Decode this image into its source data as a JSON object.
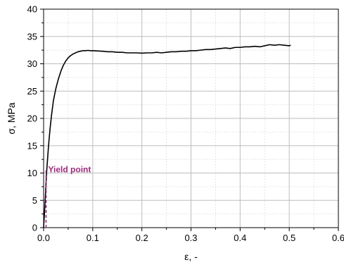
{
  "chart_data": {
    "type": "line",
    "xlabel": "ε, -",
    "ylabel": "σ, MPa",
    "xlim": [
      0,
      0.6
    ],
    "ylim": [
      0,
      40
    ],
    "xticks": [
      "0.0",
      "0.1",
      "0.2",
      "0.3",
      "0.4",
      "0.5",
      "0.6"
    ],
    "yticks": [
      "0",
      "5",
      "10",
      "15",
      "20",
      "25",
      "30",
      "35",
      "40"
    ],
    "grid": true,
    "minor_grid": true,
    "series": [
      {
        "color": "#000000",
        "x": [
          0.0,
          0.002,
          0.004,
          0.006,
          0.008,
          0.01,
          0.013,
          0.016,
          0.02,
          0.025,
          0.03,
          0.035,
          0.04,
          0.045,
          0.05,
          0.055,
          0.06,
          0.065,
          0.07,
          0.075,
          0.08,
          0.085,
          0.09,
          0.095,
          0.1,
          0.11,
          0.12,
          0.13,
          0.14,
          0.15,
          0.16,
          0.17,
          0.18,
          0.19,
          0.2,
          0.21,
          0.22,
          0.23,
          0.24,
          0.25,
          0.26,
          0.27,
          0.28,
          0.29,
          0.3,
          0.31,
          0.32,
          0.33,
          0.34,
          0.35,
          0.36,
          0.37,
          0.38,
          0.39,
          0.4,
          0.41,
          0.42,
          0.43,
          0.44,
          0.45,
          0.46,
          0.47,
          0.48,
          0.49,
          0.5,
          0.503
        ],
        "y": [
          0.0,
          3.0,
          6.5,
          10.0,
          12.5,
          15.0,
          18.0,
          20.5,
          23.3,
          25.5,
          27.2,
          28.6,
          29.7,
          30.5,
          31.1,
          31.5,
          31.8,
          32.0,
          32.2,
          32.3,
          32.4,
          32.4,
          32.45,
          32.4,
          32.4,
          32.35,
          32.3,
          32.2,
          32.2,
          32.1,
          32.1,
          32.0,
          32.0,
          32.0,
          31.95,
          32.0,
          32.0,
          32.1,
          32.0,
          32.1,
          32.2,
          32.2,
          32.3,
          32.3,
          32.4,
          32.4,
          32.5,
          32.6,
          32.6,
          32.7,
          32.8,
          32.9,
          32.8,
          33.0,
          33.0,
          33.1,
          33.1,
          33.2,
          33.1,
          33.3,
          33.5,
          33.4,
          33.5,
          33.4,
          33.3,
          33.4
        ]
      }
    ],
    "annotations": [
      {
        "text": "Yield point",
        "color": "#9b2a7a",
        "x": 0.005,
        "y": 10.5
      }
    ]
  }
}
